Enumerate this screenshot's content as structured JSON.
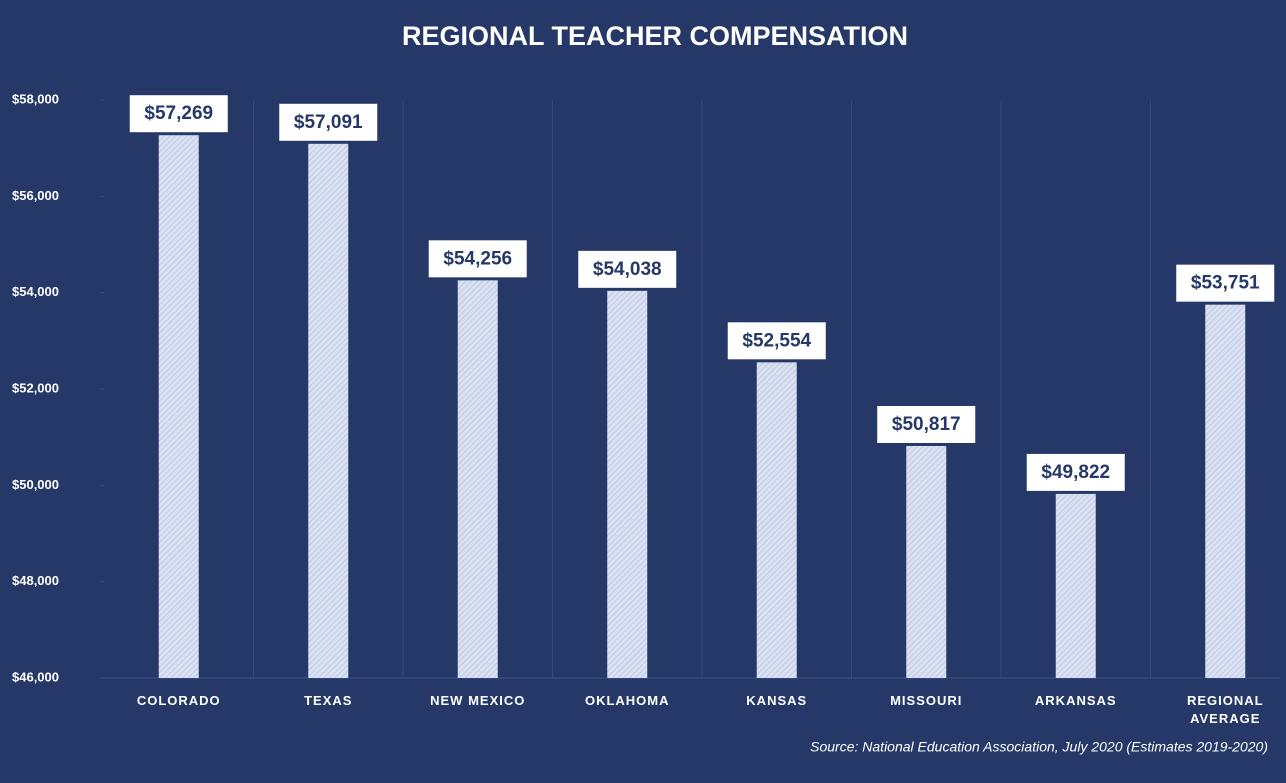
{
  "chart_data": {
    "type": "bar",
    "title": "REGIONAL TEACHER COMPENSATION",
    "source": "Source: National Education Association, July 2020 (Estimates 2019-2020)",
    "categories": [
      "COLORADO",
      "TEXAS",
      "NEW MEXICO",
      "OKLAHOMA",
      "KANSAS",
      "MISSOURI",
      "ARKANSAS",
      "REGIONAL AVERAGE"
    ],
    "values": [
      57269,
      57091,
      54256,
      54038,
      52554,
      50817,
      49822,
      53751
    ],
    "value_labels": [
      "$57,269",
      "$57,091",
      "$54,256",
      "$54,038",
      "$52,554",
      "$50,817",
      "$49,822",
      "$53,751"
    ],
    "color": "#d9e1f2",
    "ylim": [
      46000,
      58000
    ],
    "yticks": [
      {
        "value": 46000,
        "label": "$46,000"
      },
      {
        "value": 48000,
        "label": "$48,000"
      },
      {
        "value": 50000,
        "label": "$50,000"
      },
      {
        "value": 52000,
        "label": "$52,000"
      },
      {
        "value": 54000,
        "label": "$54,000"
      },
      {
        "value": 56000,
        "label": "$56,000"
      },
      {
        "value": 58000,
        "label": "$58,000"
      }
    ]
  }
}
